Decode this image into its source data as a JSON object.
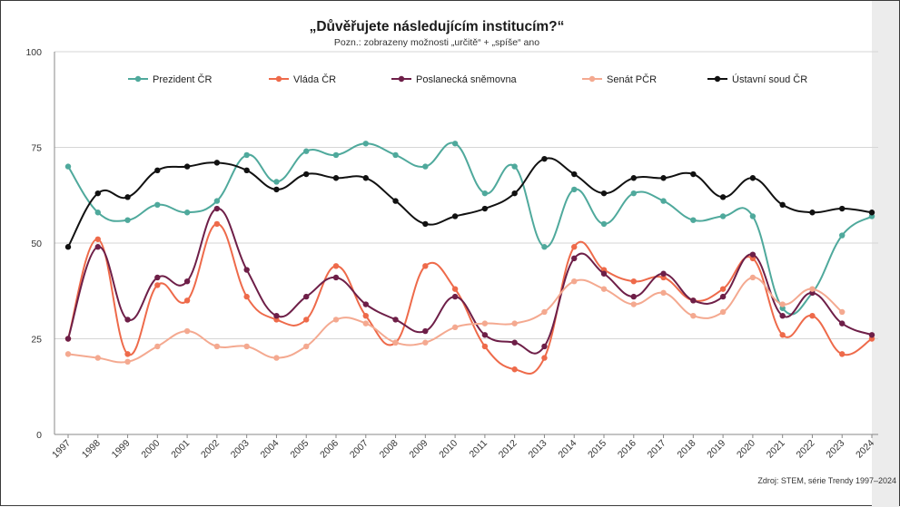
{
  "chart_data": {
    "type": "line",
    "title": "„Důvěřujete následujícím institucím?“",
    "subtitle": "Pozn.: zobrazeny možnosti „určitě“ + „spíše“ ano",
    "source": "Zdroj: STEM, série Trendy 1997–2024",
    "ylim": [
      0,
      100
    ],
    "yticks": [
      0,
      25,
      50,
      75,
      100
    ],
    "grid": true,
    "legend_position": "top",
    "x": [
      "1997",
      "1998",
      "1999",
      "2000",
      "2001",
      "2002",
      "2003",
      "2004",
      "2005",
      "2006",
      "2007",
      "2008",
      "2009",
      "2010",
      "2011",
      "2012",
      "2013",
      "2014",
      "2015",
      "2016",
      "2017",
      "2018",
      "2019",
      "2020",
      "2021",
      "2022",
      "2023",
      "2024"
    ],
    "series": [
      {
        "name": "Prezident ČR",
        "color": "#4fa99c",
        "values": [
          70,
          58,
          56,
          60,
          58,
          61,
          73,
          66,
          74,
          73,
          76,
          73,
          70,
          76,
          63,
          70,
          49,
          64,
          55,
          63,
          61,
          56,
          57,
          57,
          33,
          37,
          52,
          57
        ]
      },
      {
        "name": "Vláda ČR",
        "color": "#ee6a4a",
        "values": [
          25,
          51,
          21,
          39,
          35,
          55,
          36,
          30,
          30,
          44,
          31,
          24,
          44,
          38,
          23,
          17,
          20,
          49,
          43,
          40,
          41,
          35,
          38,
          46,
          26,
          31,
          21,
          25
        ]
      },
      {
        "name": "Poslanecká sněmovna",
        "color": "#6e1f48",
        "values": [
          25,
          49,
          30,
          41,
          40,
          59,
          43,
          31,
          36,
          41,
          34,
          30,
          27,
          36,
          26,
          24,
          23,
          46,
          42,
          36,
          42,
          35,
          36,
          47,
          31,
          37,
          29,
          26
        ]
      },
      {
        "name": "Senát PČR",
        "color": "#f4a990",
        "values": [
          21,
          20,
          19,
          23,
          27,
          23,
          23,
          20,
          23,
          30,
          29,
          24,
          24,
          28,
          29,
          29,
          32,
          40,
          38,
          34,
          37,
          31,
          32,
          41,
          34,
          38,
          32,
          null
        ]
      },
      {
        "name": "Ústavní soud ČR",
        "color": "#111111",
        "values": [
          49,
          63,
          62,
          69,
          70,
          71,
          69,
          64,
          68,
          67,
          67,
          61,
          55,
          57,
          59,
          63,
          72,
          68,
          63,
          67,
          67,
          68,
          62,
          67,
          60,
          58,
          59,
          58
        ]
      }
    ]
  }
}
